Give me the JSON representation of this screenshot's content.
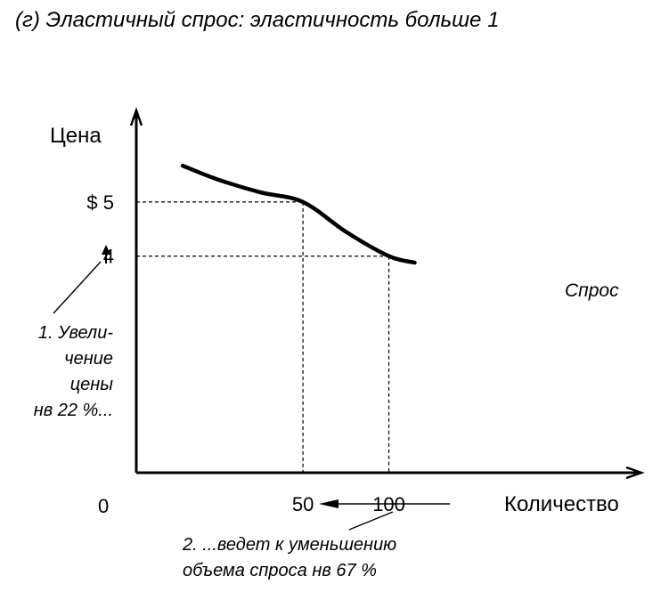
{
  "chart_data": {
    "type": "line",
    "title": "(г) Эластичный спрос: эластичность больше 1",
    "xlabel": "Количество",
    "ylabel": "Цена",
    "origin_label": "0",
    "series": [
      {
        "name": "Спрос",
        "points": [
          [
            -20,
            5.67
          ],
          [
            0,
            5.42
          ],
          [
            25,
            5.18
          ],
          [
            50,
            5.0
          ],
          [
            75,
            4.45
          ],
          [
            100,
            4.0
          ],
          [
            115,
            3.88
          ]
        ]
      }
    ],
    "reference_points": [
      {
        "x": 50,
        "y": 5
      },
      {
        "x": 100,
        "y": 4
      }
    ],
    "x_ticks": [
      {
        "value": 50,
        "label": "50"
      },
      {
        "value": 100,
        "label": "100"
      }
    ],
    "y_ticks": [
      {
        "value": 5,
        "label": "$ 5"
      },
      {
        "value": 4,
        "label": "4"
      }
    ],
    "xlim": [
      -47,
      150
    ],
    "ylim": [
      0,
      6.1
    ],
    "grid": false,
    "annotations": {
      "price_note": [
        "1. Увели-",
        "чение",
        "цены",
        "нв 22 %..."
      ],
      "quantity_note": [
        "2. ...ведет к уменьшению",
        "объема спроса нв 67 %"
      ]
    }
  }
}
